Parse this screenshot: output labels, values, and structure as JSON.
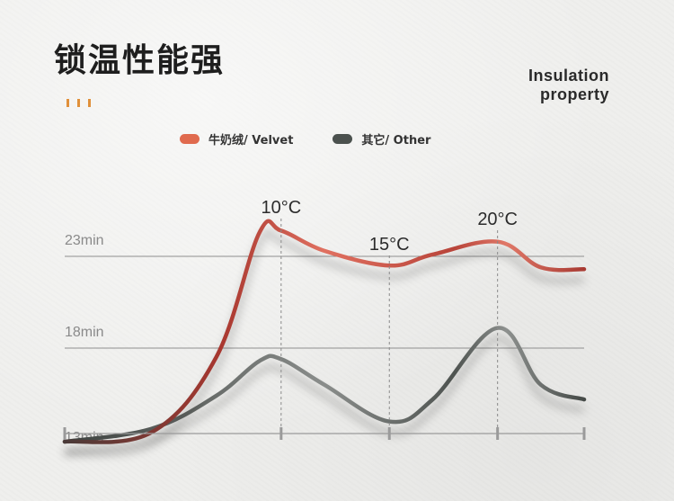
{
  "title": "锁温性能强",
  "title_en": [
    "Insulation",
    "property"
  ],
  "colors": {
    "velvet": "#c84a40",
    "other": "#4e5350",
    "accent": "#e0903a",
    "velvet_swatch": "#e06a4e",
    "other_swatch": "#4b514e"
  },
  "legend": [
    {
      "label": "牛奶绒/ Velvet",
      "color": "#e06a4e"
    },
    {
      "label": "其它/ Other",
      "color": "#4b514e"
    }
  ],
  "chart_data": {
    "type": "line",
    "title": "锁温性能强",
    "y_ticks": [
      {
        "label": "23min",
        "value": 23
      },
      {
        "label": "18min",
        "value": 18
      },
      {
        "label": "13min",
        "value": 13
      }
    ],
    "markers": [
      {
        "label": "10°C",
        "x": 10
      },
      {
        "label": "15°C",
        "x": 15
      },
      {
        "label": "20°C",
        "x": 20
      }
    ],
    "series": [
      {
        "name": "牛奶绒/ Velvet",
        "color": "#c84a40",
        "points": [
          [
            0,
            12.9
          ],
          [
            4,
            13.4
          ],
          [
            7,
            17.5
          ],
          [
            9,
            24.3
          ],
          [
            10,
            24.4
          ],
          [
            12,
            23.3
          ],
          [
            15,
            22.5
          ],
          [
            17,
            23.1
          ],
          [
            20,
            23.8
          ],
          [
            22,
            22.4
          ],
          [
            24,
            22.3
          ]
        ]
      },
      {
        "name": "其它/ Other",
        "color": "#4e5350",
        "points": [
          [
            0,
            12.9
          ],
          [
            4,
            13.6
          ],
          [
            7,
            15.4
          ],
          [
            9,
            17.3
          ],
          [
            10,
            17.4
          ],
          [
            12,
            16.0
          ],
          [
            15,
            14.0
          ],
          [
            17,
            15.2
          ],
          [
            20,
            19.1
          ],
          [
            22,
            16.0
          ],
          [
            24,
            15.2
          ]
        ]
      }
    ]
  }
}
